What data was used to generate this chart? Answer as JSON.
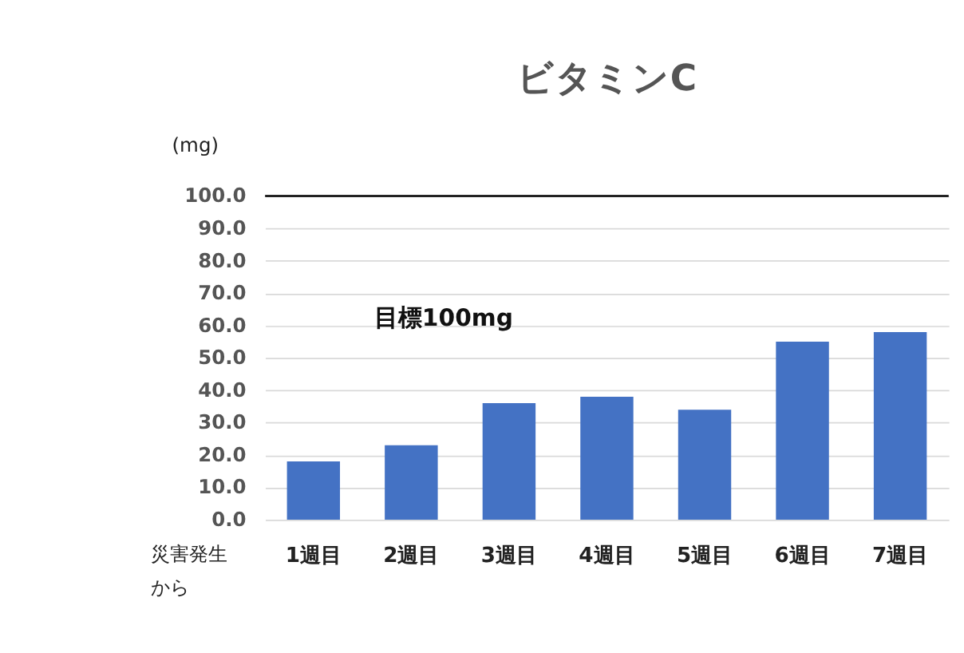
{
  "chart_data": {
    "type": "bar",
    "title": "ビタミンC",
    "ylabel": "(mg)",
    "xlabel": "災害発生から",
    "categories": [
      "1週目",
      "2週目",
      "3週目",
      "4週目",
      "5週目",
      "6週目",
      "7週目"
    ],
    "values": [
      18,
      23,
      36,
      38,
      34,
      55,
      58
    ],
    "color": "#4472c4",
    "ylim": [
      0,
      100
    ],
    "yticks": [
      {
        "value": 0,
        "label": "0.0"
      },
      {
        "value": 10,
        "label": "10.0"
      },
      {
        "value": 20,
        "label": "20.0"
      },
      {
        "value": 30,
        "label": "30.0"
      },
      {
        "value": 40,
        "label": "40.0"
      },
      {
        "value": 50,
        "label": "50.0"
      },
      {
        "value": 60,
        "label": "60.0"
      },
      {
        "value": 70,
        "label": "70.0"
      },
      {
        "value": 80,
        "label": "80.0"
      },
      {
        "value": 90,
        "label": "90.0"
      },
      {
        "value": 100,
        "label": "100.0"
      }
    ],
    "ref_lines": [
      {
        "axis": "y",
        "value": 100,
        "color": "#000000"
      }
    ],
    "annotations": [
      "目標100mg"
    ],
    "grid": "y"
  }
}
